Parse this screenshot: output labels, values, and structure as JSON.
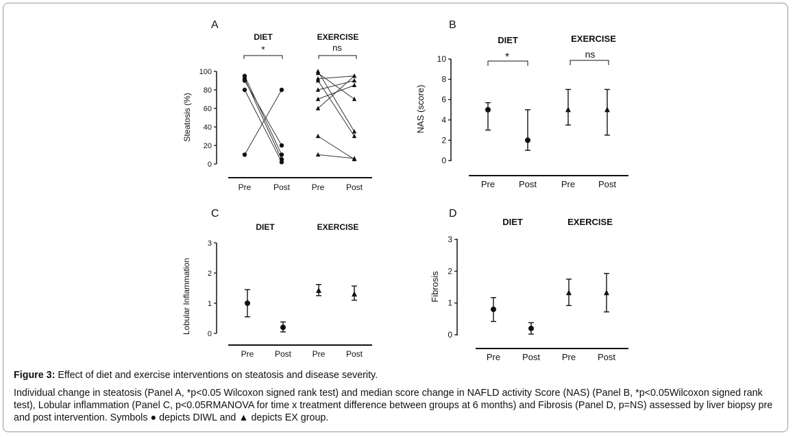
{
  "figure": {
    "caption_label": "Figure 3:",
    "caption_title": " Effect of diet and exercise interventions on steatosis and disease severity.",
    "caption_body": "Individual change in steatosis (Panel A, *p<0.05 Wilcoxon signed rank test) and median score change in NAFLD activity Score (NAS) (Panel B, *p<0.05Wilcoxon signed rank test), Lobular inflammation (Panel C, p<0.05RMANOVA for time x treatment difference between groups at 6 months) and Fibrosis (Panel D, p=NS) assessed by liver biopsy pre and post intervention. Symbols ● depicts DIWL and ▲ depicts EX group."
  },
  "chart_data": [
    {
      "panel": "A",
      "type": "scatter",
      "group_labels": [
        "DIET",
        "EXERCISE"
      ],
      "categories": [
        "Pre",
        "Post",
        "Pre",
        "Post"
      ],
      "ylabel": "Steatosis (%)",
      "ylim": [
        0,
        100
      ],
      "yticks": [
        "0",
        "20",
        "40",
        "60",
        "80",
        "100"
      ],
      "significance": [
        "*",
        "ns"
      ],
      "series": [
        {
          "marker": "circle",
          "pairs": [
            [
              95,
              10
            ],
            [
              92,
              5
            ],
            [
              90,
              20
            ],
            [
              80,
              2
            ],
            [
              10,
              80
            ]
          ]
        },
        {
          "marker": "triangle",
          "pairs": [
            [
              100,
              35
            ],
            [
              98,
              70
            ],
            [
              92,
              95
            ],
            [
              90,
              30
            ],
            [
              80,
              90
            ],
            [
              70,
              85
            ],
            [
              60,
              95
            ],
            [
              30,
              5
            ],
            [
              10,
              6
            ]
          ]
        }
      ]
    },
    {
      "panel": "B",
      "type": "scatter",
      "group_labels": [
        "DIET",
        "EXERCISE"
      ],
      "categories": [
        "Pre",
        "Post",
        "Pre",
        "Post"
      ],
      "ylabel": "NAS (score)",
      "ylim": [
        0,
        10
      ],
      "yticks": [
        "0",
        "2",
        "4",
        "6",
        "8",
        "10"
      ],
      "significance": [
        "*",
        "ns"
      ],
      "points": [
        {
          "marker": "circle",
          "value": 5,
          "low": 3,
          "high": 5.7
        },
        {
          "marker": "circle",
          "value": 2,
          "low": 1,
          "high": 5
        },
        {
          "marker": "triangle",
          "value": 5,
          "low": 3.5,
          "high": 7
        },
        {
          "marker": "triangle",
          "value": 5,
          "low": 2.5,
          "high": 7
        }
      ]
    },
    {
      "panel": "C",
      "type": "scatter",
      "group_labels": [
        "DIET",
        "EXERCISE"
      ],
      "categories": [
        "Pre",
        "Post",
        "Pre",
        "Post"
      ],
      "ylabel": "Lobular Inflammation",
      "ylim": [
        0,
        3
      ],
      "yticks": [
        "0",
        "1",
        "2",
        "3"
      ],
      "points": [
        {
          "marker": "circle",
          "value": 1.0,
          "low": 0.55,
          "high": 1.45
        },
        {
          "marker": "circle",
          "value": 0.2,
          "low": 0.05,
          "high": 0.38
        },
        {
          "marker": "triangle",
          "value": 1.42,
          "low": 1.25,
          "high": 1.62
        },
        {
          "marker": "triangle",
          "value": 1.3,
          "low": 1.1,
          "high": 1.57
        }
      ]
    },
    {
      "panel": "D",
      "type": "scatter",
      "group_labels": [
        "DIET",
        "EXERCISE"
      ],
      "categories": [
        "Pre",
        "Post",
        "Pre",
        "Post"
      ],
      "ylabel": "Fibrosis",
      "ylim": [
        0,
        3
      ],
      "yticks": [
        "0",
        "1",
        "2",
        "3"
      ],
      "points": [
        {
          "marker": "circle",
          "value": 0.8,
          "low": 0.42,
          "high": 1.17
        },
        {
          "marker": "circle",
          "value": 0.2,
          "low": 0.02,
          "high": 0.38
        },
        {
          "marker": "triangle",
          "value": 1.32,
          "low": 0.92,
          "high": 1.75
        },
        {
          "marker": "triangle",
          "value": 1.32,
          "low": 0.72,
          "high": 1.93
        }
      ]
    }
  ]
}
